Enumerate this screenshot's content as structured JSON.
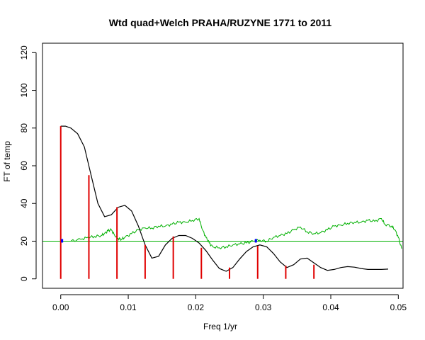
{
  "chart_data": {
    "type": "line",
    "title": "Wtd quad+Welch PRAHA/RUZYNE 1771 to 2011",
    "xlabel": "Freq 1/yr",
    "ylabel": "FT of temp",
    "xlim": [
      -0.0027,
      0.0507
    ],
    "ylim": [
      -5,
      125
    ],
    "x_ticks": [
      0.0,
      0.01,
      0.02,
      0.03,
      0.04,
      0.05
    ],
    "x_tick_labels": [
      "0.00",
      "0.01",
      "0.02",
      "0.03",
      "0.04",
      "0.05"
    ],
    "y_ticks": [
      0,
      20,
      40,
      60,
      80,
      100,
      120
    ],
    "y_tick_labels": [
      "0",
      "20",
      "40",
      "60",
      "80",
      "100",
      "120"
    ],
    "grid": false,
    "legend": "none",
    "series": [
      {
        "style": "smooth-line",
        "color": "#000000",
        "points": [
          [
            0.0,
            81
          ],
          [
            0.0007,
            81
          ],
          [
            0.0015,
            80
          ],
          [
            0.0025,
            77
          ],
          [
            0.0035,
            70
          ],
          [
            0.0045,
            55
          ],
          [
            0.0055,
            40
          ],
          [
            0.0065,
            33
          ],
          [
            0.0075,
            34
          ],
          [
            0.0085,
            38
          ],
          [
            0.0095,
            39
          ],
          [
            0.0105,
            36
          ],
          [
            0.0115,
            28
          ],
          [
            0.0125,
            18
          ],
          [
            0.0135,
            11
          ],
          [
            0.0145,
            12
          ],
          [
            0.0155,
            18
          ],
          [
            0.0165,
            21.5
          ],
          [
            0.0175,
            23
          ],
          [
            0.0185,
            23
          ],
          [
            0.0195,
            21.5
          ],
          [
            0.0205,
            19
          ],
          [
            0.0215,
            15
          ],
          [
            0.0225,
            10
          ],
          [
            0.0235,
            5.5
          ],
          [
            0.0245,
            4
          ],
          [
            0.0255,
            6
          ],
          [
            0.0265,
            10.5
          ],
          [
            0.0275,
            14.5
          ],
          [
            0.0285,
            17
          ],
          [
            0.0295,
            18
          ],
          [
            0.0305,
            17
          ],
          [
            0.0315,
            13.5
          ],
          [
            0.0325,
            9
          ],
          [
            0.0335,
            6
          ],
          [
            0.0345,
            7.5
          ],
          [
            0.0355,
            10.5
          ],
          [
            0.0365,
            11
          ],
          [
            0.0375,
            8.5
          ],
          [
            0.0385,
            6
          ],
          [
            0.0395,
            4.5
          ],
          [
            0.0405,
            5
          ],
          [
            0.0415,
            6
          ],
          [
            0.0425,
            6.5
          ],
          [
            0.0435,
            6.2
          ],
          [
            0.0445,
            5.5
          ],
          [
            0.0455,
            5
          ],
          [
            0.0465,
            5
          ],
          [
            0.0475,
            5
          ],
          [
            0.0485,
            5.2
          ]
        ]
      },
      {
        "style": "noisy-line",
        "color": "#00b000",
        "points": [
          [
            0.0015,
            20
          ],
          [
            0.003,
            21
          ],
          [
            0.004,
            22
          ],
          [
            0.005,
            22.5
          ],
          [
            0.006,
            23
          ],
          [
            0.0065,
            24
          ],
          [
            0.007,
            25.5
          ],
          [
            0.0075,
            26
          ],
          [
            0.008,
            23
          ],
          [
            0.0085,
            21.5
          ],
          [
            0.009,
            21
          ],
          [
            0.0095,
            22
          ],
          [
            0.0105,
            24
          ],
          [
            0.0115,
            26
          ],
          [
            0.0125,
            27
          ],
          [
            0.0135,
            27
          ],
          [
            0.0145,
            28
          ],
          [
            0.0155,
            28
          ],
          [
            0.0165,
            29
          ],
          [
            0.0175,
            30
          ],
          [
            0.0185,
            30
          ],
          [
            0.0195,
            31
          ],
          [
            0.0205,
            32
          ],
          [
            0.021,
            26
          ],
          [
            0.0215,
            22
          ],
          [
            0.022,
            19
          ],
          [
            0.0225,
            17
          ],
          [
            0.0235,
            16.5
          ],
          [
            0.0245,
            17
          ],
          [
            0.0255,
            18
          ],
          [
            0.0265,
            18.5
          ],
          [
            0.0275,
            19
          ],
          [
            0.0285,
            20
          ],
          [
            0.0295,
            20.5
          ],
          [
            0.0305,
            20
          ],
          [
            0.0315,
            22
          ],
          [
            0.0325,
            23
          ],
          [
            0.0335,
            24
          ],
          [
            0.0345,
            26
          ],
          [
            0.0355,
            27.5
          ],
          [
            0.0365,
            25
          ],
          [
            0.0375,
            24
          ],
          [
            0.0385,
            24.5
          ],
          [
            0.0395,
            26
          ],
          [
            0.0405,
            28
          ],
          [
            0.0415,
            28.5
          ],
          [
            0.0425,
            29.5
          ],
          [
            0.0435,
            30
          ],
          [
            0.0445,
            30
          ],
          [
            0.0455,
            31
          ],
          [
            0.0465,
            30.5
          ],
          [
            0.0475,
            32
          ],
          [
            0.048,
            29
          ],
          [
            0.049,
            28
          ],
          [
            0.0495,
            26
          ],
          [
            0.05,
            22
          ],
          [
            0.0505,
            16
          ]
        ]
      },
      {
        "style": "reference-line",
        "color": "#00b000",
        "points": [
          [
            -0.0027,
            20
          ],
          [
            0.0507,
            20
          ]
        ]
      },
      {
        "style": "stems",
        "color": "#e00000",
        "points": [
          [
            0.0,
            81
          ],
          [
            0.00417,
            55
          ],
          [
            0.00833,
            38
          ],
          [
            0.0125,
            18
          ],
          [
            0.01667,
            22.5
          ],
          [
            0.02083,
            16.5
          ],
          [
            0.025,
            6
          ],
          [
            0.02917,
            17.5
          ],
          [
            0.03333,
            7
          ],
          [
            0.0375,
            7.5
          ]
        ]
      },
      {
        "style": "markers",
        "color": "#0000ff",
        "points": [
          [
            0.0002,
            20.2
          ],
          [
            0.0289,
            20.2
          ]
        ]
      }
    ]
  }
}
